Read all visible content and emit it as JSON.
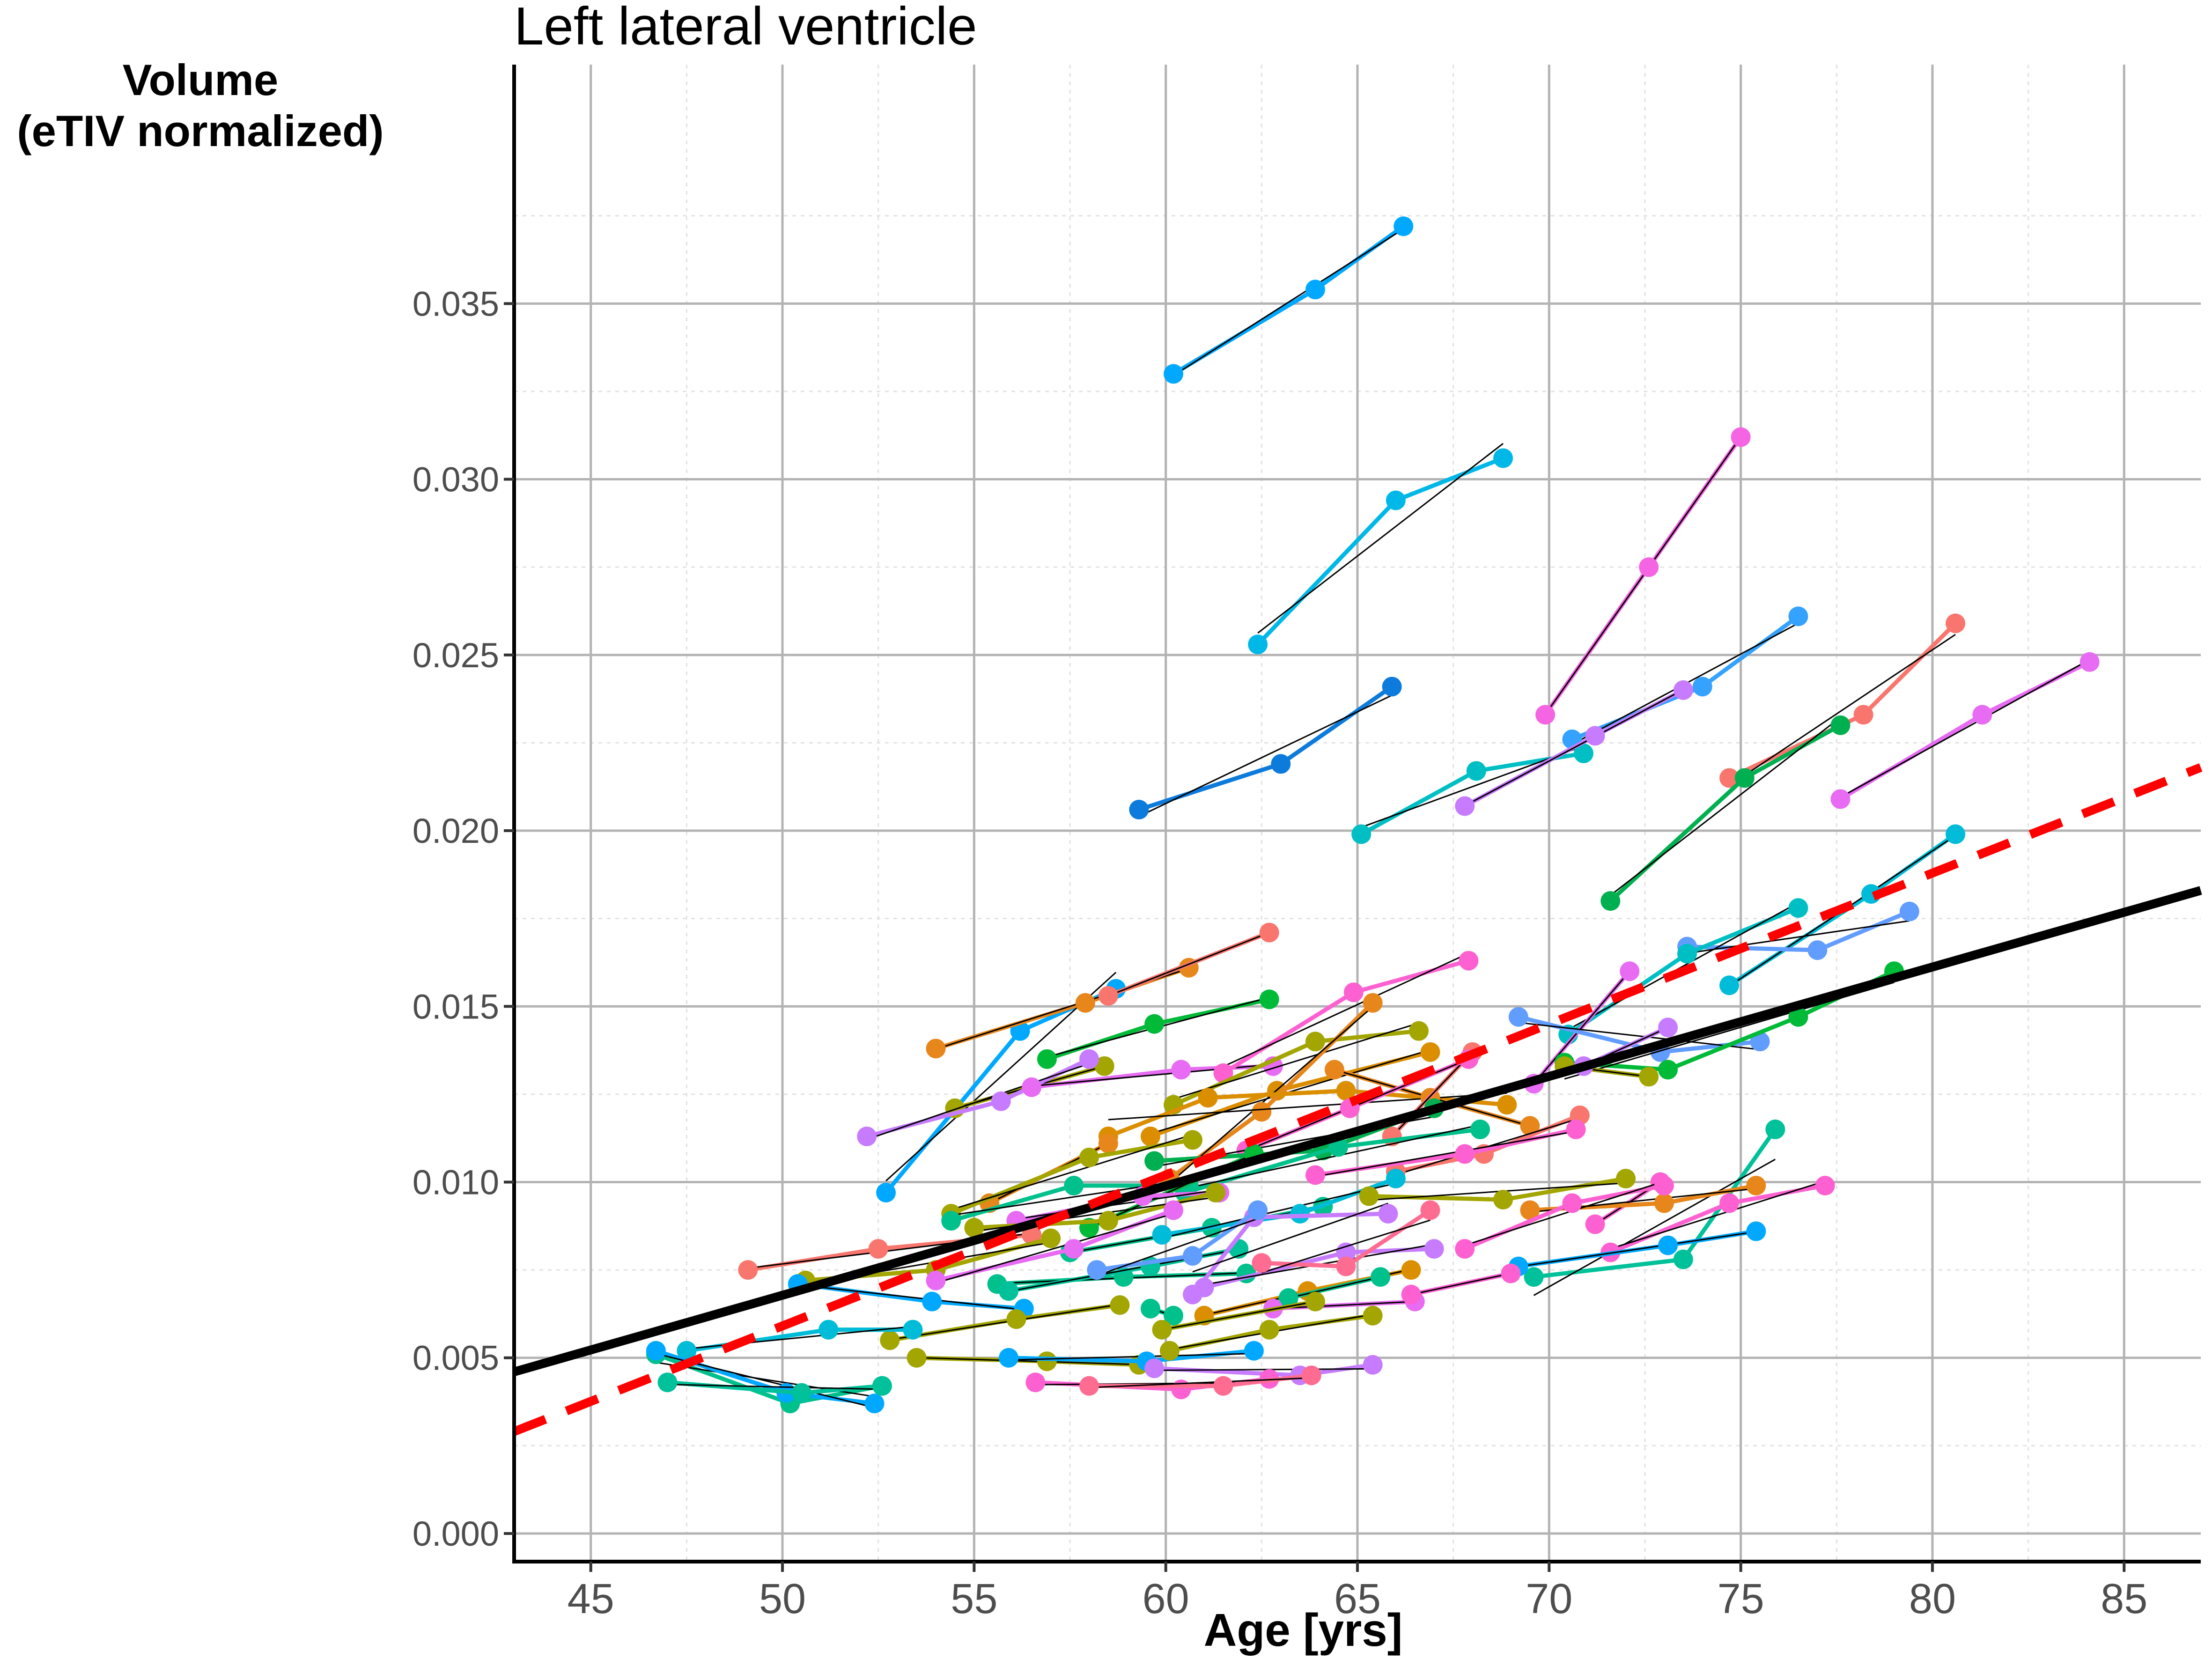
{
  "chart_data": {
    "type": "line",
    "title": "Left lateral ventricle",
    "ylabel_lines": [
      "Volume",
      "(eTIV normalized)"
    ],
    "xlabel": "Age [yrs]",
    "xlim": [
      43,
      87
    ],
    "ylim": [
      -0.0008,
      0.0418
    ],
    "xticks": [
      45,
      50,
      55,
      60,
      65,
      70,
      75,
      80,
      85
    ],
    "yticks": [
      0.0,
      0.005,
      0.01,
      0.015,
      0.02,
      0.025,
      0.03,
      0.035
    ],
    "ytick_labels": [
      "0.000",
      "0.005",
      "0.010",
      "0.015",
      "0.020",
      "0.025",
      "0.030",
      "0.035"
    ],
    "grid": true,
    "population_fits": [
      {
        "style": "solid",
        "color": "#000000",
        "x": [
          43,
          87
        ],
        "y": [
          0.0046,
          0.0183
        ]
      },
      {
        "style": "dashed",
        "color": "#ff0000",
        "x": [
          43,
          87
        ],
        "y": [
          0.0029,
          0.0218
        ]
      }
    ],
    "subjects": [
      {
        "color": "#00a9ff",
        "x": [
          60.2,
          63.9,
          66.2
        ],
        "y": [
          0.033,
          0.0354,
          0.0372
        ]
      },
      {
        "color": "#00b8e7",
        "x": [
          62.4,
          66.0,
          68.8
        ],
        "y": [
          0.0253,
          0.0294,
          0.0306
        ]
      },
      {
        "color": "#f564e3",
        "x": [
          69.9,
          72.6,
          75.0
        ],
        "y": [
          0.0233,
          0.0275,
          0.0312
        ]
      },
      {
        "color": "#35a2ff",
        "x": [
          70.6,
          74.0,
          76.5
        ],
        "y": [
          0.0226,
          0.0241,
          0.0261
        ]
      },
      {
        "color": "#f8766d",
        "x": [
          74.7,
          78.2,
          80.6
        ],
        "y": [
          0.0215,
          0.0233,
          0.0259
        ]
      },
      {
        "color": "#e76bf3",
        "x": [
          77.6,
          81.3,
          84.1
        ],
        "y": [
          0.0209,
          0.0233,
          0.0248
        ]
      },
      {
        "color": "#0c7bdc",
        "x": [
          59.3,
          63.0,
          65.9
        ],
        "y": [
          0.0206,
          0.0219,
          0.0241
        ]
      },
      {
        "color": "#00bfc4",
        "x": [
          65.1,
          68.1,
          70.9
        ],
        "y": [
          0.0199,
          0.0217,
          0.0222
        ]
      },
      {
        "color": "#c77cff",
        "x": [
          67.8,
          71.2,
          73.5
        ],
        "y": [
          0.0207,
          0.0227,
          0.024
        ]
      },
      {
        "color": "#00b050",
        "x": [
          71.6,
          75.1,
          77.6
        ],
        "y": [
          0.018,
          0.0215,
          0.023
        ]
      },
      {
        "color": "#00bcd8",
        "x": [
          74.7,
          78.4,
          80.6
        ],
        "y": [
          0.0156,
          0.0182,
          0.0199
        ]
      },
      {
        "color": "#619cff",
        "x": [
          73.6,
          77.0,
          79.4
        ],
        "y": [
          0.0167,
          0.0166,
          0.0177
        ]
      },
      {
        "color": "#00bfc4",
        "x": [
          70.5,
          73.6,
          76.5
        ],
        "y": [
          0.0142,
          0.0165,
          0.0178
        ]
      },
      {
        "color": "#e76bf3",
        "x": [
          69.6,
          72.1
        ],
        "y": [
          0.0128,
          0.016
        ]
      },
      {
        "color": "#619cff",
        "x": [
          69.2,
          72.9,
          75.5
        ],
        "y": [
          0.0147,
          0.0137,
          0.014
        ]
      },
      {
        "color": "#00ba38",
        "x": [
          70.4,
          73.1,
          76.5,
          79.0
        ],
        "y": [
          0.0134,
          0.0132,
          0.0147,
          0.016
        ]
      },
      {
        "color": "#a3a500",
        "x": [
          70.4,
          72.6
        ],
        "y": [
          0.0133,
          0.013
        ]
      },
      {
        "color": "#c77cff",
        "x": [
          70.9,
          73.1
        ],
        "y": [
          0.0133,
          0.0144
        ]
      },
      {
        "color": "#00c19a",
        "x": [
          69.6,
          73.5,
          75.9
        ],
        "y": [
          0.0073,
          0.0078,
          0.0115
        ]
      },
      {
        "color": "#fd61d1",
        "x": [
          71.2,
          72.9
        ],
        "y": [
          0.0088,
          0.01
        ]
      },
      {
        "color": "#e7861b",
        "x": [
          69.5,
          73.0,
          75.4
        ],
        "y": [
          0.0092,
          0.0094,
          0.0099
        ]
      },
      {
        "color": "#fd61d1",
        "x": [
          71.6,
          74.7,
          77.2
        ],
        "y": [
          0.008,
          0.0094,
          0.0099
        ]
      },
      {
        "color": "#00a9ff",
        "x": [
          69.2,
          73.1,
          75.4
        ],
        "y": [
          0.0076,
          0.0082,
          0.0086
        ]
      },
      {
        "color": "#00a9ff",
        "x": [
          52.7,
          56.2,
          58.7
        ],
        "y": [
          0.0097,
          0.0143,
          0.0155
        ]
      },
      {
        "color": "#e7861b",
        "x": [
          54.0,
          57.9,
          60.6
        ],
        "y": [
          0.0138,
          0.0151,
          0.0161
        ]
      },
      {
        "color": "#f8766d",
        "x": [
          58.5,
          62.7
        ],
        "y": [
          0.0153,
          0.0171
        ]
      },
      {
        "color": "#00ba38",
        "x": [
          56.9,
          59.7,
          62.7
        ],
        "y": [
          0.0135,
          0.0145,
          0.0152
        ]
      },
      {
        "color": "#a3a500",
        "x": [
          54.5,
          58.4
        ],
        "y": [
          0.0121,
          0.0133
        ]
      },
      {
        "color": "#c77cff",
        "x": [
          52.2,
          55.7,
          58.0
        ],
        "y": [
          0.0113,
          0.0123,
          0.0135
        ]
      },
      {
        "color": "#e76bf3",
        "x": [
          56.5,
          60.4,
          62.8
        ],
        "y": [
          0.0127,
          0.0132,
          0.0133
        ]
      },
      {
        "color": "#fd61d1",
        "x": [
          61.5,
          64.9,
          67.9
        ],
        "y": [
          0.0131,
          0.0154,
          0.0163
        ]
      },
      {
        "color": "#a3a500",
        "x": [
          60.2,
          63.9,
          66.6
        ],
        "y": [
          0.0122,
          0.014,
          0.0143
        ]
      },
      {
        "color": "#db8e00",
        "x": [
          59.6,
          62.9,
          66.9
        ],
        "y": [
          0.0113,
          0.0126,
          0.0137
        ]
      },
      {
        "color": "#e7861b",
        "x": [
          60.1,
          62.5,
          65.4
        ],
        "y": [
          0.0101,
          0.012,
          0.0151
        ]
      },
      {
        "color": "#db8e00",
        "x": [
          58.5,
          61.1,
          64.7,
          68.9
        ],
        "y": [
          0.0113,
          0.0124,
          0.0126,
          0.0122
        ]
      },
      {
        "color": "#e7861b",
        "x": [
          64.4,
          66.9,
          69.5
        ],
        "y": [
          0.0132,
          0.0124,
          0.0116
        ]
      },
      {
        "color": "#f8766d",
        "x": [
          65.9,
          68.0
        ],
        "y": [
          0.0113,
          0.0137
        ]
      },
      {
        "color": "#fd61d1",
        "x": [
          62.1,
          64.8,
          67.9
        ],
        "y": [
          0.0109,
          0.0121,
          0.0135
        ]
      },
      {
        "color": "#00b050",
        "x": [
          59.7,
          64.1,
          67.0
        ],
        "y": [
          0.0106,
          0.0109,
          0.0121
        ]
      },
      {
        "color": "#00c08b",
        "x": [
          60.5,
          64.5,
          68.2
        ],
        "y": [
          0.0097,
          0.011,
          0.0115
        ]
      },
      {
        "color": "#f8766d",
        "x": [
          66.0,
          68.3,
          70.8
        ],
        "y": [
          0.0103,
          0.0108,
          0.0119
        ]
      },
      {
        "color": "#fd61d1",
        "x": [
          63.9,
          67.8,
          70.7
        ],
        "y": [
          0.0102,
          0.0108,
          0.0115
        ]
      },
      {
        "color": "#e7861b",
        "x": [
          55.4,
          58.5
        ],
        "y": [
          0.0094,
          0.0111
        ]
      },
      {
        "color": "#a3a500",
        "x": [
          54.4,
          58.0,
          60.7
        ],
        "y": [
          0.0091,
          0.0107,
          0.0112
        ]
      },
      {
        "color": "#00c08b",
        "x": [
          54.4,
          57.6,
          60.6
        ],
        "y": [
          0.0089,
          0.0099,
          0.0099
        ]
      },
      {
        "color": "#00ba38",
        "x": [
          58.0,
          62.3
        ],
        "y": [
          0.0087,
          0.0108
        ]
      },
      {
        "color": "#e76bf3",
        "x": [
          56.1,
          59.4,
          61.4
        ],
        "y": [
          0.0089,
          0.0096,
          0.0097
        ]
      },
      {
        "color": "#a3a500",
        "x": [
          55.0,
          58.5,
          61.3
        ],
        "y": [
          0.0087,
          0.0089,
          0.0097
        ]
      },
      {
        "color": "#00c08b",
        "x": [
          57.5,
          61.2,
          64.1
        ],
        "y": [
          0.008,
          0.0087,
          0.0093
        ]
      },
      {
        "color": "#00bcd8",
        "x": [
          59.9,
          63.5,
          66.0
        ],
        "y": [
          0.0085,
          0.0091,
          0.0101
        ]
      },
      {
        "color": "#a3a500",
        "x": [
          65.3,
          68.8,
          72.0
        ],
        "y": [
          0.0096,
          0.0095,
          0.0101
        ]
      },
      {
        "color": "#fd61d1",
        "x": [
          67.8,
          70.6,
          73.0
        ],
        "y": [
          0.0081,
          0.0094,
          0.0099
        ]
      },
      {
        "color": "#f8766d",
        "x": [
          49.1,
          52.5,
          56.5
        ],
        "y": [
          0.0075,
          0.0081,
          0.0085
        ]
      },
      {
        "color": "#a3a500",
        "x": [
          50.6,
          54.0,
          57.0
        ],
        "y": [
          0.0072,
          0.0075,
          0.0084
        ]
      },
      {
        "color": "#e76bf3",
        "x": [
          54.0,
          57.6,
          60.2
        ],
        "y": [
          0.0072,
          0.0081,
          0.0092
        ]
      },
      {
        "color": "#00a9ff",
        "x": [
          50.4,
          53.9,
          56.3
        ],
        "y": [
          0.0071,
          0.0066,
          0.0064
        ]
      },
      {
        "color": "#00c08b",
        "x": [
          55.6,
          58.9,
          62.1
        ],
        "y": [
          0.0071,
          0.0073,
          0.0074
        ]
      },
      {
        "color": "#00c19a",
        "x": [
          55.9,
          59.6,
          61.9
        ],
        "y": [
          0.0069,
          0.0076,
          0.0081
        ]
      },
      {
        "color": "#c77cff",
        "x": [
          61.0,
          64.7,
          67.0
        ],
        "y": [
          0.007,
          0.008,
          0.0081
        ]
      },
      {
        "color": "#c77cff",
        "x": [
          60.7,
          62.3,
          65.8
        ],
        "y": [
          0.0068,
          0.009,
          0.0091
        ]
      },
      {
        "color": "#619cff",
        "x": [
          58.2,
          60.7,
          62.4
        ],
        "y": [
          0.0075,
          0.0079,
          0.0092
        ]
      },
      {
        "color": "#ff6c91",
        "x": [
          62.5,
          64.7,
          66.9
        ],
        "y": [
          0.0077,
          0.0076,
          0.0092
        ]
      },
      {
        "color": "#db8e00",
        "x": [
          61.0,
          63.7,
          66.4
        ],
        "y": [
          0.0062,
          0.0069,
          0.0075
        ]
      },
      {
        "color": "#00c08b",
        "x": [
          63.2,
          65.6
        ],
        "y": [
          0.0067,
          0.0073
        ]
      },
      {
        "color": "#e76bf3",
        "x": [
          62.8,
          66.5
        ],
        "y": [
          0.0064,
          0.0066
        ]
      },
      {
        "color": "#fd61d1",
        "x": [
          66.4,
          69.0
        ],
        "y": [
          0.0068,
          0.0074
        ]
      },
      {
        "color": "#00c19a",
        "x": [
          51.2,
          53.4
        ],
        "y": [
          0.0058,
          0.0058
        ]
      },
      {
        "color": "#a3a500",
        "x": [
          52.8,
          56.1,
          58.8
        ],
        "y": [
          0.0055,
          0.0061,
          0.0065
        ]
      },
      {
        "color": "#00c08b",
        "x": [
          46.7,
          50.2,
          52.6
        ],
        "y": [
          0.0051,
          0.0037,
          0.0042
        ]
      },
      {
        "color": "#00bcd8",
        "x": [
          47.5,
          51.2,
          53.4
        ],
        "y": [
          0.0052,
          0.0058,
          0.0058
        ]
      },
      {
        "color": "#00a9ff",
        "x": [
          46.7,
          50.1,
          52.4
        ],
        "y": [
          0.0052,
          0.004,
          0.0037
        ]
      },
      {
        "color": "#00c19a",
        "x": [
          47.0,
          50.5,
          52.6
        ],
        "y": [
          0.0043,
          0.004,
          0.0042
        ]
      },
      {
        "color": "#a3a500",
        "x": [
          53.5,
          56.9,
          59.3
        ],
        "y": [
          0.005,
          0.0049,
          0.0048
        ]
      },
      {
        "color": "#00a9ff",
        "x": [
          55.9,
          59.5,
          62.3
        ],
        "y": [
          0.005,
          0.0049,
          0.0052
        ]
      },
      {
        "color": "#a3a500",
        "x": [
          60.1,
          62.7,
          65.4
        ],
        "y": [
          0.0052,
          0.0058,
          0.0062
        ]
      },
      {
        "color": "#00c08b",
        "x": [
          59.6,
          60.2
        ],
        "y": [
          0.0064,
          0.0062
        ]
      },
      {
        "color": "#a3a500",
        "x": [
          59.9,
          63.9
        ],
        "y": [
          0.0058,
          0.0066
        ]
      },
      {
        "color": "#c77cff",
        "x": [
          59.7,
          63.5,
          65.4
        ],
        "y": [
          0.0047,
          0.0045,
          0.0048
        ]
      },
      {
        "color": "#fd61d1",
        "x": [
          56.6,
          60.4,
          62.7
        ],
        "y": [
          0.0043,
          0.0041,
          0.0044
        ]
      },
      {
        "color": "#ff6c91",
        "x": [
          58.0,
          61.5,
          63.8
        ],
        "y": [
          0.0042,
          0.0042,
          0.0045
        ]
      }
    ]
  }
}
